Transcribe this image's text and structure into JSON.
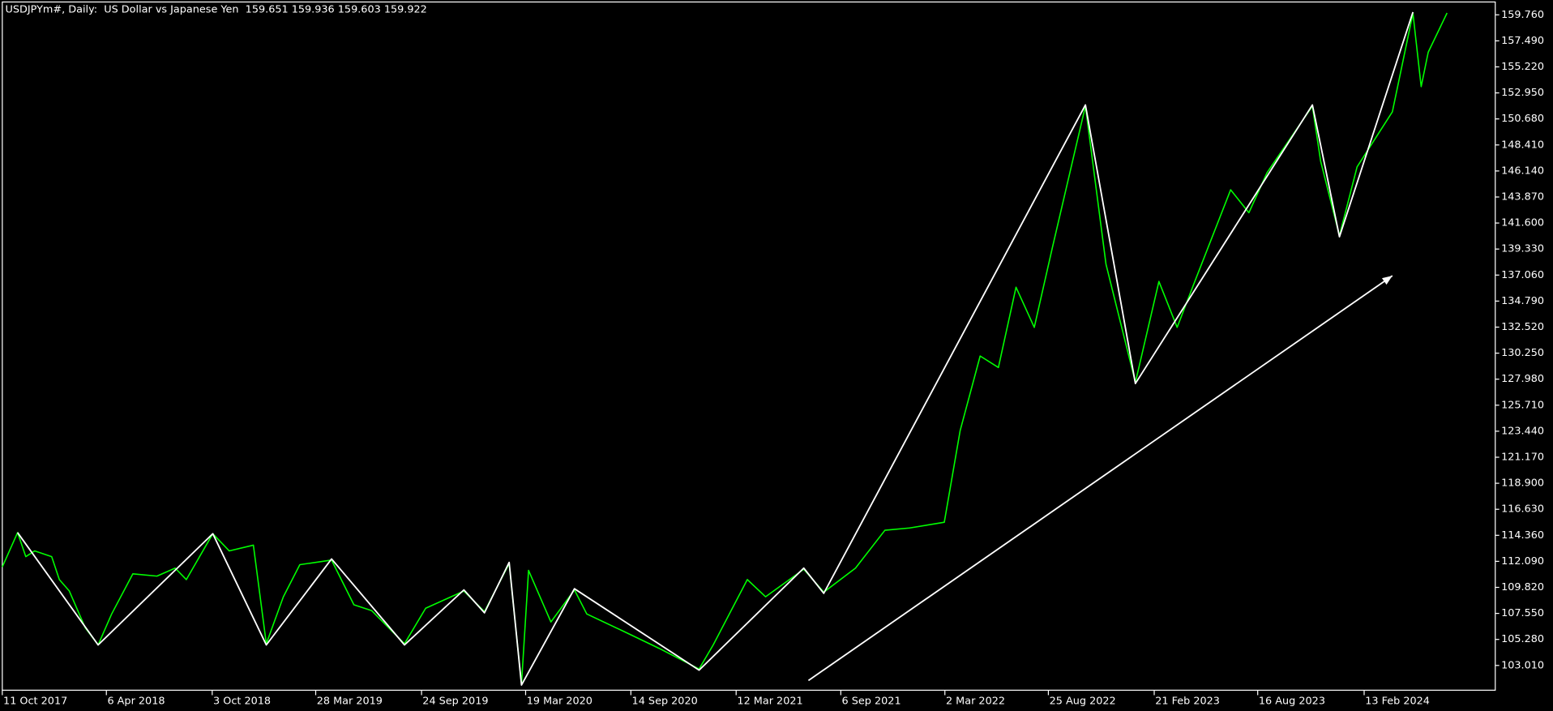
{
  "chart_data": {
    "type": "line",
    "title": "USDJPYm#, Daily:  US Dollar vs Japanese Yen  159.651 159.936 159.603 159.922",
    "background": "#000000",
    "axis_color": "#ffffff",
    "grid": false,
    "xlim": [
      "11 Oct 2017",
      "23 Sep 2024"
    ],
    "xticks": [
      "11 Oct 2017",
      "6 Apr 2018",
      "3 Oct 2018",
      "28 Mar 2019",
      "24 Sep 2019",
      "19 Mar 2020",
      "14 Sep 2020",
      "12 Mar 2021",
      "6 Sep 2021",
      "2 Mar 2022",
      "25 Aug 2022",
      "21 Feb 2023",
      "16 Aug 2023",
      "13 Feb 2024"
    ],
    "ylim": [
      100.85,
      160.88
    ],
    "yticks": [
      {
        "value": 103.01,
        "label": "103.010"
      },
      {
        "value": 105.28,
        "label": "105.280"
      },
      {
        "value": 107.55,
        "label": "107.550"
      },
      {
        "value": 109.82,
        "label": "109.820"
      },
      {
        "value": 112.09,
        "label": "112.090"
      },
      {
        "value": 114.36,
        "label": "114.360"
      },
      {
        "value": 116.63,
        "label": "116.630"
      },
      {
        "value": 118.9,
        "label": "118.900"
      },
      {
        "value": 121.17,
        "label": "121.170"
      },
      {
        "value": 123.44,
        "label": "123.440"
      },
      {
        "value": 125.71,
        "label": "125.710"
      },
      {
        "value": 127.98,
        "label": "127.980"
      },
      {
        "value": 130.25,
        "label": "130.250"
      },
      {
        "value": 132.52,
        "label": "132.520"
      },
      {
        "value": 134.79,
        "label": "134.790"
      },
      {
        "value": 137.06,
        "label": "137.060"
      },
      {
        "value": 139.33,
        "label": "139.330"
      },
      {
        "value": 141.6,
        "label": "141.600"
      },
      {
        "value": 143.87,
        "label": "143.870"
      },
      {
        "value": 146.14,
        "label": "146.140"
      },
      {
        "value": 148.41,
        "label": "148.410"
      },
      {
        "value": 150.68,
        "label": "150.680"
      },
      {
        "value": 152.95,
        "label": "152.950"
      },
      {
        "value": 155.22,
        "label": "155.220"
      },
      {
        "value": 157.49,
        "label": "157.490"
      },
      {
        "value": 159.76,
        "label": "159.760"
      }
    ],
    "series": [
      {
        "color": "#00ff00",
        "width": 1.3,
        "x": [
          "11 Oct 2017",
          "6 Nov 2017",
          "20 Nov 2017",
          "5 Dec 2017",
          "3 Jan 2018",
          "16 Jan 2018",
          "2 Feb 2018",
          "1 Mar 2018",
          "23 Mar 2018",
          "15 Apr 2018",
          "21 May 2018",
          "1 Jul 2018",
          "1 Aug 2018",
          "20 Aug 2018",
          "4 Oct 2018",
          "1 Nov 2018",
          "12 Dec 2018",
          "3 Jan 2019",
          "1 Feb 2019",
          "1 Mar 2019",
          "24 Apr 2019",
          "1 Jun 2019",
          "1 Jul 2019",
          "26 Aug 2019",
          "1 Oct 2019",
          "5 Dec 2019",
          "9 Jan 2020",
          "20 Feb 2020",
          "12 Mar 2020",
          "24 Mar 2020",
          "1 May 2020",
          "10 Jun 2020",
          "1 Jul 2020",
          "1 Sep 2020",
          "1 Nov 2020",
          "8 Jan 2021",
          "1 Feb 2021",
          "31 Mar 2021",
          "1 May 2021",
          "5 Jul 2021",
          "8 Aug 2021",
          "1 Oct 2021",
          "20 Nov 2021",
          "1 Jan 2022",
          "1 Mar 2022",
          "28 Mar 2022",
          "1 May 2022",
          "1 Jun 2022",
          "1 Jul 2022",
          "1 Aug 2022",
          "1 Sep 2022",
          "27 Oct 2022",
          "1 Dec 2022",
          "20 Jan 2023",
          "1 Mar 2023",
          "1 Apr 2023",
          "1 May 2023",
          "1 Jul 2023",
          "1 Aug 2023",
          "1 Sep 2023",
          "17 Nov 2023",
          "1 Dec 2023",
          "2 Jan 2024",
          "1 Feb 2024",
          "1 Apr 2024",
          "6 May 2024",
          "20 May 2024",
          "1 Jun 2024",
          "3 Jul 2024"
        ],
        "values": [
          111.6,
          114.6,
          112.5,
          113.0,
          112.5,
          110.5,
          109.5,
          106.3,
          104.8,
          107.5,
          111.0,
          110.8,
          111.5,
          110.5,
          114.5,
          113.0,
          113.5,
          104.9,
          109.0,
          111.8,
          112.2,
          108.3,
          107.8,
          104.9,
          108.0,
          109.5,
          107.7,
          111.9,
          101.4,
          111.3,
          106.8,
          109.6,
          107.5,
          106.0,
          104.5,
          102.7,
          104.8,
          110.5,
          109.0,
          111.4,
          109.4,
          111.5,
          114.8,
          115.0,
          115.5,
          123.5,
          130.0,
          129.0,
          136.0,
          132.5,
          139.5,
          151.8,
          138.0,
          127.7,
          136.5,
          132.5,
          136.5,
          144.5,
          142.5,
          146.0,
          151.8,
          147.0,
          140.5,
          146.5,
          151.3,
          159.9,
          153.5,
          156.5,
          159.92
        ]
      },
      {
        "color": "#ffffff",
        "width": 1.5,
        "x": [
          "6 Nov 2017",
          "23 Mar 2018",
          "4 Oct 2018",
          "3 Jan 2019",
          "24 Apr 2019",
          "26 Aug 2019",
          "5 Dec 2019",
          "9 Jan 2020",
          "20 Feb 2020",
          "12 Mar 2020",
          "10 Jun 2020",
          "8 Jan 2021",
          "5 Jul 2021",
          "8 Aug 2021",
          "27 Oct 2022",
          "20 Jan 2023",
          "17 Nov 2023",
          "2 Jan 2024",
          "6 May 2024"
        ],
        "values": [
          114.6,
          104.8,
          114.5,
          104.8,
          112.3,
          104.8,
          109.6,
          107.6,
          112.0,
          101.3,
          109.7,
          102.6,
          111.5,
          109.3,
          151.9,
          127.6,
          151.9,
          140.4,
          160.0
        ]
      },
      {
        "color": "#ffffff",
        "width": 1.5,
        "arrow": true,
        "x": [
          "13 Jul 2021",
          "1 Apr 2024"
        ],
        "values": [
          101.7,
          137.0
        ]
      }
    ]
  }
}
